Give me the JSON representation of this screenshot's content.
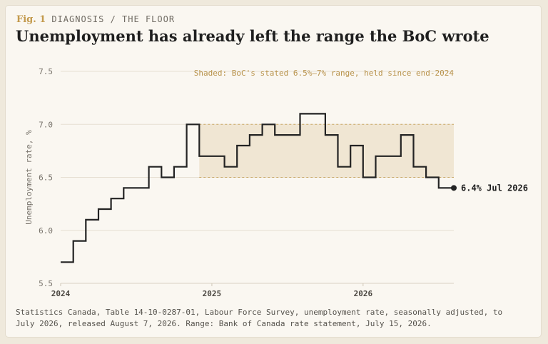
{
  "header": {
    "fig_label": "Fig. 1",
    "kicker": "DIAGNOSIS / THE FLOOR",
    "title": "Unemployment has already left the range the BoC wrote"
  },
  "source_note": "Statistics Canada, Table 14-10-0287-01, Labour Force Survey, unemployment rate, seasonally adjusted, to July 2026, released August 7, 2026. Range: Bank of Canada rate statement, July 15, 2026.",
  "colors": {
    "line": "#232323",
    "band_fill": "#f0e6d3",
    "band_border": "#c9a866",
    "annotation": "#b8924a",
    "grid": "#e6dfd2",
    "axis_text": "#77726a"
  },
  "chart_data": {
    "type": "line",
    "step": true,
    "xlabel": "",
    "ylabel": "Unemployment rate, %",
    "ylim": [
      5.5,
      7.5
    ],
    "yticks": [
      "5.5",
      "6.0",
      "6.5",
      "7.0",
      "7.5"
    ],
    "xticks": [
      "2024",
      "2025",
      "2026"
    ],
    "grid": "horizontal",
    "x": [
      "2024-01",
      "2024-02",
      "2024-03",
      "2024-04",
      "2024-05",
      "2024-06",
      "2024-07",
      "2024-08",
      "2024-09",
      "2024-10",
      "2024-11",
      "2024-12",
      "2025-01",
      "2025-02",
      "2025-03",
      "2025-04",
      "2025-05",
      "2025-06",
      "2025-07",
      "2025-08",
      "2025-09",
      "2025-10",
      "2025-11",
      "2025-12",
      "2026-01",
      "2026-02",
      "2026-03",
      "2026-04",
      "2026-05",
      "2026-06",
      "2026-07"
    ],
    "series": [
      {
        "values": [
          5.7,
          5.9,
          6.1,
          6.2,
          6.3,
          6.4,
          6.4,
          6.6,
          6.5,
          6.6,
          7.0,
          6.7,
          6.7,
          6.6,
          6.8,
          6.9,
          7.0,
          6.9,
          6.9,
          7.1,
          7.1,
          6.9,
          6.6,
          6.8,
          6.5,
          6.7,
          6.7,
          6.9,
          6.6,
          6.5,
          6.4
        ]
      }
    ],
    "band": {
      "low": 6.5,
      "high": 7.0,
      "from": "2024-12",
      "label": "Shaded: BoC's stated 6.5%–7% range, held since end-2024"
    },
    "end_label": "6.4% Jul 2026"
  }
}
